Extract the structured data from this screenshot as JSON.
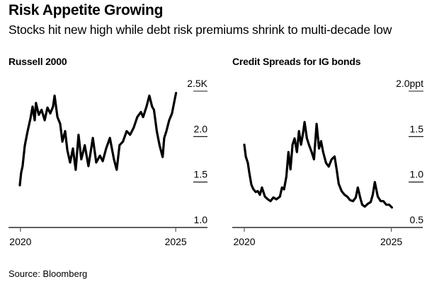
{
  "header": {
    "title": "Risk Appetite Growing",
    "subtitle": "Stocks hit new high while debt risk premiums shrink to multi-decade low"
  },
  "footer": {
    "source": "Source: Bloomberg"
  },
  "colors": {
    "line": "#000000",
    "axis": "#000000",
    "gridline_top": "#8c8c8c"
  },
  "chart_data": [
    {
      "type": "line",
      "title": "Russell 2000",
      "xlabel": "",
      "ylabel": "",
      "x_ticks": [
        2020,
        2025
      ],
      "x_tick_labels": [
        "2020",
        "2025"
      ],
      "xlim": [
        2019.98,
        2026.0
      ],
      "ylim": [
        1000,
        2500
      ],
      "y_ticks": [
        1000,
        1500,
        2000,
        2500
      ],
      "y_tick_labels": [
        "1.0",
        "1.5",
        "2.0",
        "2.5K"
      ],
      "grid": true,
      "legend": "none",
      "series": [
        {
          "name": "Russell 2000",
          "x": [
            2019.98,
            2020.02,
            2020.07,
            2020.14,
            2020.23,
            2020.32,
            2020.39,
            2020.46,
            2020.5,
            2020.59,
            2020.68,
            2020.78,
            2020.87,
            2020.96,
            2021.05,
            2021.1,
            2021.19,
            2021.28,
            2021.35,
            2021.44,
            2021.51,
            2021.6,
            2021.69,
            2021.78,
            2021.87,
            2021.96,
            2022.07,
            2022.19,
            2022.33,
            2022.44,
            2022.56,
            2022.65,
            2022.76,
            2022.88,
            2023.01,
            2023.1,
            2023.19,
            2023.3,
            2023.42,
            2023.53,
            2023.65,
            2023.76,
            2023.88,
            2023.95,
            2024.06,
            2024.15,
            2024.24,
            2024.3,
            2024.39,
            2024.48,
            2024.58,
            2024.63,
            2024.7,
            2024.79,
            2024.88,
            2024.97,
            2025.01
          ],
          "y": [
            1465,
            1600,
            1675,
            1900,
            2060,
            2195,
            2330,
            2180,
            2370,
            2240,
            2295,
            2180,
            2320,
            2255,
            2330,
            2450,
            2215,
            2140,
            1945,
            2060,
            1850,
            1715,
            1870,
            1635,
            2020,
            1750,
            1905,
            1675,
            1985,
            1715,
            1790,
            1730,
            1870,
            1985,
            1750,
            1635,
            1905,
            1945,
            2060,
            2020,
            2100,
            2215,
            2270,
            2215,
            2330,
            2450,
            2330,
            2295,
            2060,
            1905,
            1775,
            1985,
            2060,
            2180,
            2255,
            2410,
            2480
          ]
        }
      ]
    },
    {
      "type": "line",
      "title": "Credit Spreads for IG bonds",
      "xlabel": "",
      "ylabel": "",
      "x_ticks": [
        2020,
        2025
      ],
      "x_tick_labels": [
        "2020",
        "2025"
      ],
      "xlim": [
        2019.59,
        2026.07
      ],
      "ylim": [
        0.5,
        2.0
      ],
      "y_ticks": [
        0.5,
        1.0,
        1.5,
        2.0
      ],
      "y_tick_labels": [
        "0.5",
        "1.0",
        "1.5",
        "2.0ppt"
      ],
      "grid": true,
      "legend": "none",
      "series": [
        {
          "name": "IG credit spread",
          "x": [
            2020.0,
            2020.05,
            2020.12,
            2020.17,
            2020.24,
            2020.31,
            2020.39,
            2020.46,
            2020.53,
            2020.6,
            2020.7,
            2020.8,
            2020.89,
            2020.99,
            2021.09,
            2021.21,
            2021.28,
            2021.35,
            2021.43,
            2021.5,
            2021.57,
            2021.64,
            2021.71,
            2021.79,
            2021.86,
            2021.93,
            2022.0,
            2022.05,
            2022.13,
            2022.2,
            2022.29,
            2022.37,
            2022.46,
            2022.54,
            2022.61,
            2022.68,
            2022.78,
            2022.87,
            2022.97,
            2023.07,
            2023.14,
            2023.21,
            2023.31,
            2023.41,
            2023.5,
            2023.6,
            2023.7,
            2023.79,
            2023.86,
            2023.94,
            2024.01,
            2024.1,
            2024.2,
            2024.3,
            2024.37,
            2024.44,
            2024.54,
            2024.64,
            2024.73,
            2024.83,
            2024.93,
            2025.02
          ],
          "y": [
            1.41,
            1.28,
            1.21,
            1.1,
            0.97,
            0.92,
            0.89,
            0.9,
            0.86,
            0.94,
            0.84,
            0.81,
            0.79,
            0.83,
            0.81,
            0.84,
            0.94,
            0.92,
            1.06,
            1.33,
            1.14,
            1.41,
            1.48,
            1.33,
            1.56,
            1.41,
            1.54,
            1.66,
            1.48,
            1.41,
            1.33,
            1.25,
            1.64,
            1.37,
            1.45,
            1.33,
            1.21,
            1.17,
            1.25,
            1.28,
            1.14,
            0.98,
            0.9,
            0.86,
            0.84,
            0.8,
            0.79,
            0.83,
            0.94,
            0.83,
            0.75,
            0.73,
            0.76,
            0.78,
            0.86,
            1.0,
            0.84,
            0.79,
            0.79,
            0.75,
            0.75,
            0.72
          ]
        }
      ]
    }
  ]
}
